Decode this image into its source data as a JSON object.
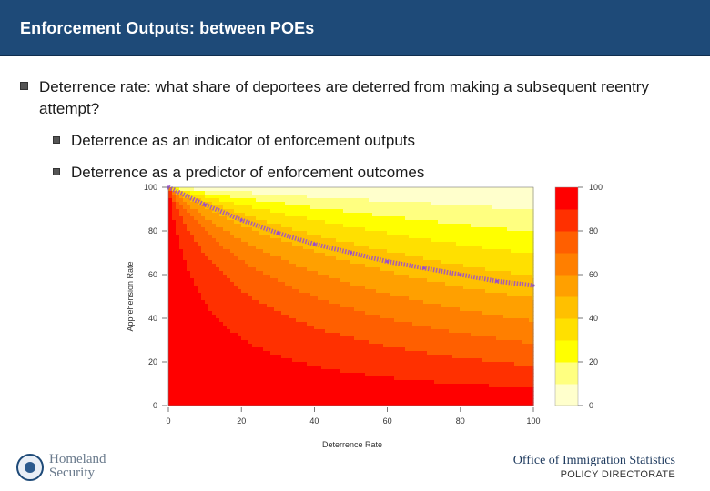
{
  "header": {
    "title": "Enforcement Outputs: between POEs"
  },
  "bullets": [
    {
      "text": "Deterrence rate: what share of deportees are deterred from making a subsequent reentry attempt?"
    },
    {
      "text": "Deterrence as an indicator of enforcement outputs"
    },
    {
      "text": "Deterrence as a predictor of enforcement outcomes"
    }
  ],
  "chart_data": {
    "type": "heatmap",
    "title": "",
    "xlabel": "Deterrence Rate",
    "ylabel": "Apprehension Rate",
    "xlim": [
      0,
      100
    ],
    "ylim": [
      0,
      100
    ],
    "x_ticks": [
      0,
      20,
      40,
      60,
      80,
      100
    ],
    "y_ticks": [
      0,
      20,
      40,
      60,
      80,
      100
    ],
    "x_tick_labels": [
      "0",
      "20",
      "40",
      "60",
      "80",
      "100"
    ],
    "y_tick_labels": [
      "0",
      "20",
      "40",
      "60",
      "80",
      "100"
    ],
    "colorbar": {
      "ticks": [
        0,
        20,
        40,
        60,
        80,
        100
      ],
      "tick_labels": [
        "0",
        "20",
        "40",
        "60",
        "80",
        "100"
      ],
      "levels": 10,
      "colors": [
        "#ffffcc",
        "#ffff80",
        "#ffff00",
        "#ffe000",
        "#ffc000",
        "#ffa000",
        "#ff7f00",
        "#ff5f00",
        "#ff3000",
        "#ff0000"
      ]
    },
    "contour_levels": [
      10,
      20,
      30,
      40,
      50,
      60,
      70,
      80,
      90
    ],
    "highlight_curve": {
      "description": "purple dotted curve",
      "x": [
        0,
        10,
        20,
        30,
        40,
        50,
        60,
        70,
        80,
        90,
        100
      ],
      "y": [
        100,
        92,
        85,
        79,
        74,
        70,
        66,
        63,
        60,
        57,
        55
      ]
    },
    "colors": {
      "highlight": "#9a4dcc"
    }
  },
  "footer": {
    "logo_text_1": "Homeland",
    "logo_text_2": "Security",
    "office": "Office of Immigration Statistics",
    "directorate": "POLICY DIRECTORATE"
  }
}
